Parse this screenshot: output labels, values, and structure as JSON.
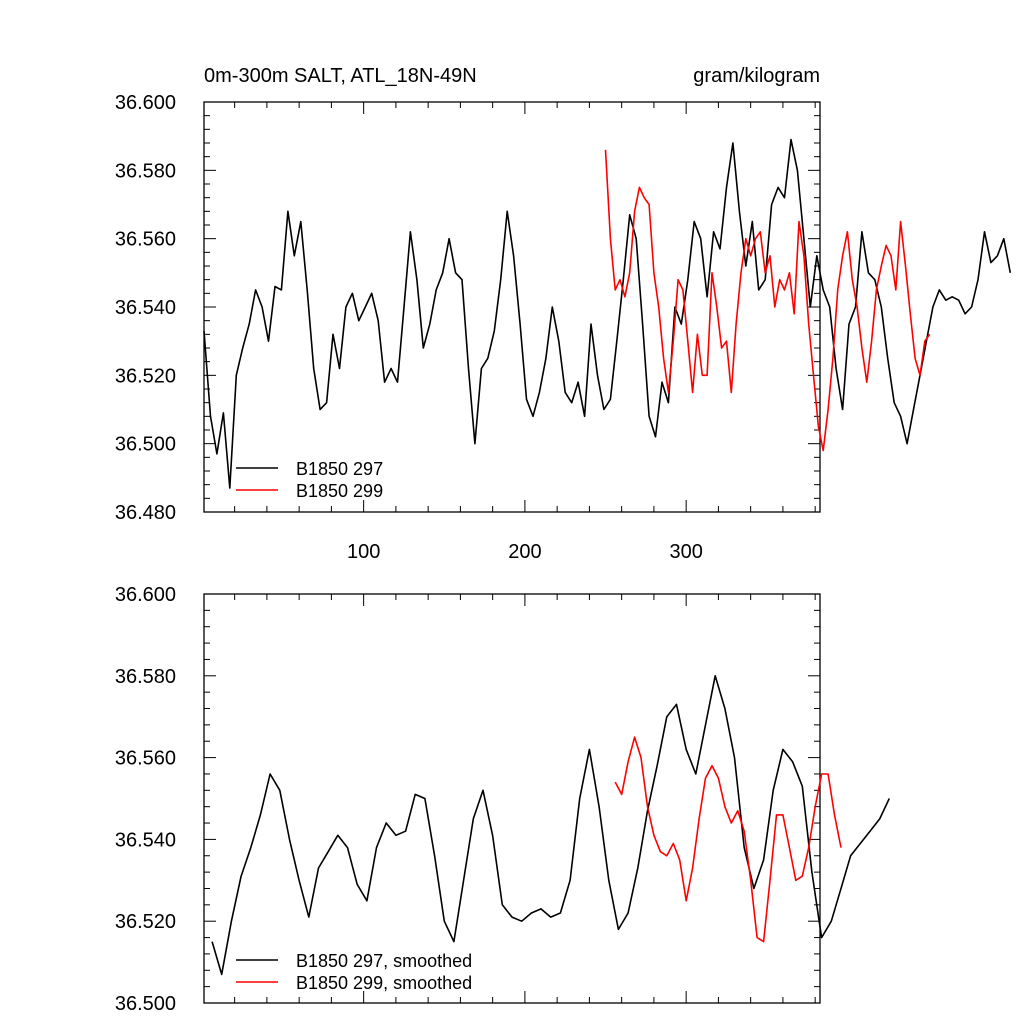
{
  "chart_data": [
    {
      "type": "line",
      "title_left": "0m-300m SALT, ATL_18N-49N",
      "title_right": "gram/kilogram",
      "xlim": [
        1,
        383
      ],
      "ylim": [
        36.48,
        36.6
      ],
      "x_ticks": [
        100,
        200,
        300
      ],
      "x_tick_labels": [
        "100",
        "200",
        "300"
      ],
      "y_ticks": [
        36.48,
        36.5,
        36.52,
        36.54,
        36.56,
        36.58,
        36.6
      ],
      "y_tick_labels": [
        "36.480",
        "36.500",
        "36.520",
        "36.540",
        "36.560",
        "36.580",
        "36.600"
      ],
      "legend": [
        "B1850 297",
        "B1850 299"
      ],
      "series": [
        {
          "name": "B1850 297",
          "color": "#000000",
          "x_start": 1,
          "x_step": 4,
          "values": [
            36.533,
            36.508,
            36.497,
            36.509,
            36.487,
            36.52,
            36.528,
            36.535,
            36.545,
            36.54,
            36.53,
            36.546,
            36.545,
            36.568,
            36.555,
            36.565,
            36.545,
            36.522,
            36.51,
            36.512,
            36.532,
            36.522,
            36.54,
            36.544,
            36.536,
            36.54,
            36.544,
            36.536,
            36.518,
            36.522,
            36.518,
            36.54,
            36.562,
            36.548,
            36.528,
            36.535,
            36.545,
            36.55,
            36.56,
            36.55,
            36.548,
            36.522,
            36.5,
            36.522,
            36.525,
            36.533,
            36.548,
            36.568,
            36.555,
            36.535,
            36.513,
            36.508,
            36.515,
            36.525,
            36.54,
            36.53,
            36.515,
            36.512,
            36.518,
            36.508,
            36.535,
            36.52,
            36.51,
            36.513,
            36.53,
            36.548,
            36.567,
            36.56,
            36.535,
            36.508,
            36.502,
            36.518,
            36.512,
            36.54,
            36.535,
            36.548,
            36.565,
            36.56,
            36.543,
            36.562,
            36.557,
            36.575,
            36.588,
            36.568,
            36.552,
            36.565,
            36.545,
            36.548,
            36.57,
            36.575,
            36.572,
            36.589,
            36.58,
            36.56,
            36.54,
            36.555,
            36.545,
            36.54,
            36.522,
            36.51,
            36.535,
            36.54,
            36.562,
            36.55,
            36.548,
            36.54,
            36.525,
            36.512,
            36.508,
            36.5,
            36.51,
            36.52,
            36.53,
            36.54,
            36.545,
            36.542,
            36.543,
            36.542,
            36.538,
            36.54,
            36.548,
            36.562,
            36.553,
            36.555,
            36.56,
            36.55
          ]
        },
        {
          "name": "B1850 299",
          "color": "#ff0000",
          "x_start": 250,
          "x_step": 3,
          "values": [
            36.586,
            36.56,
            36.545,
            36.548,
            36.543,
            36.55,
            36.568,
            36.575,
            36.572,
            36.57,
            36.55,
            36.54,
            36.525,
            36.515,
            36.53,
            36.548,
            36.545,
            36.53,
            36.515,
            36.532,
            36.52,
            36.52,
            36.55,
            36.54,
            36.528,
            36.53,
            36.515,
            36.535,
            36.55,
            36.56,
            36.555,
            36.56,
            36.562,
            36.55,
            36.555,
            36.54,
            36.548,
            36.545,
            36.55,
            36.538,
            36.565,
            36.555,
            36.535,
            36.52,
            36.505,
            36.498,
            36.51,
            36.525,
            36.545,
            36.555,
            36.562,
            36.548,
            36.54,
            36.528,
            36.518,
            36.53,
            36.545,
            36.552,
            36.558,
            36.555,
            36.545,
            36.565,
            36.552,
            36.538,
            36.525,
            36.52,
            36.53,
            36.532
          ]
        }
      ]
    },
    {
      "type": "line",
      "title_left": "",
      "title_right": "",
      "xlim": [
        1,
        383
      ],
      "ylim": [
        36.5,
        36.6
      ],
      "x_ticks": [
        100,
        200,
        300
      ],
      "x_tick_labels": [],
      "y_ticks": [
        36.5,
        36.52,
        36.54,
        36.56,
        36.58,
        36.6
      ],
      "y_tick_labels": [
        "36.500",
        "36.520",
        "36.540",
        "36.560",
        "36.580",
        "36.600"
      ],
      "legend": [
        "B1850 297, smoothed",
        "B1850 299, smoothed"
      ],
      "series": [
        {
          "name": "B1850 297, smoothed",
          "color": "#000000",
          "x_start": 6,
          "x_step": 6,
          "values": [
            36.515,
            36.507,
            36.52,
            36.531,
            36.538,
            36.546,
            36.556,
            36.552,
            36.54,
            36.53,
            36.521,
            36.533,
            36.537,
            36.541,
            36.538,
            36.529,
            36.525,
            36.538,
            36.544,
            36.541,
            36.542,
            36.551,
            36.55,
            36.536,
            36.52,
            36.515,
            36.53,
            36.545,
            36.552,
            36.541,
            36.524,
            36.521,
            36.52,
            36.522,
            36.523,
            36.521,
            36.522,
            36.53,
            36.55,
            36.562,
            36.548,
            36.53,
            36.518,
            36.522,
            36.533,
            36.547,
            36.558,
            36.57,
            36.573,
            36.562,
            36.556,
            36.568,
            36.58,
            36.572,
            36.56,
            36.538,
            36.528,
            36.535,
            36.552,
            36.562,
            36.559,
            36.553,
            36.532,
            36.516,
            36.52,
            36.528,
            36.536,
            36.539,
            36.542,
            36.545,
            36.55
          ]
        },
        {
          "name": "B1850 299, smoothed",
          "color": "#ff0000",
          "x_start": 256,
          "x_step": 4,
          "values": [
            36.554,
            36.551,
            36.559,
            36.565,
            36.56,
            36.548,
            36.541,
            36.537,
            36.536,
            36.539,
            36.535,
            36.525,
            36.533,
            36.545,
            36.555,
            36.558,
            36.555,
            36.548,
            36.544,
            36.547,
            36.542,
            36.53,
            36.516,
            36.515,
            36.53,
            36.546,
            36.546,
            36.538,
            36.53,
            36.531,
            36.538,
            36.548,
            36.556,
            36.556,
            36.546,
            36.538
          ]
        }
      ]
    }
  ]
}
